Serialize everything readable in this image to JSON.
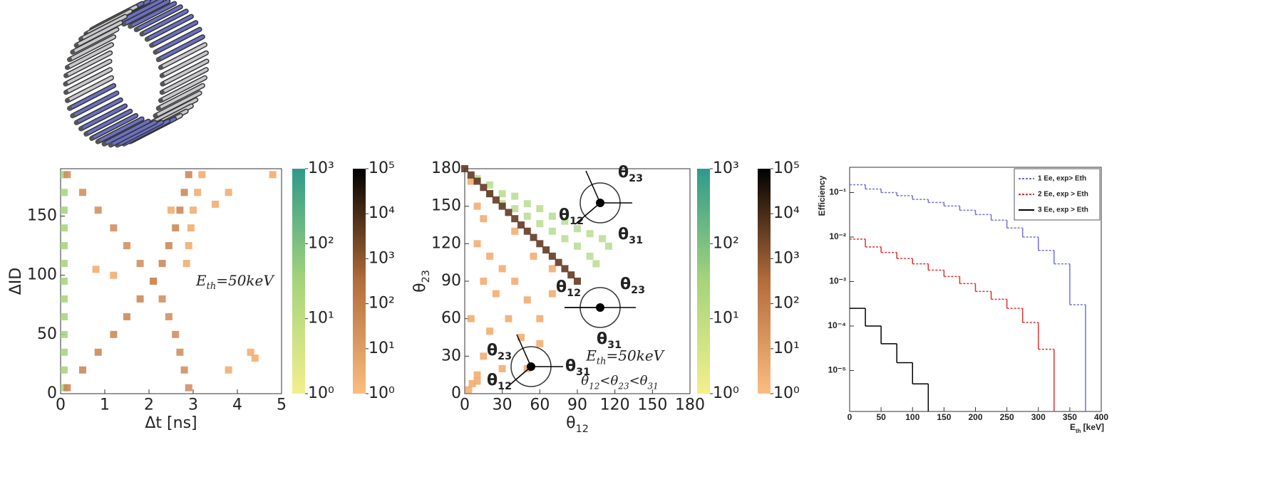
{
  "chart_data": [
    {
      "type": "heatmap",
      "xlabel": "Δt [ns]",
      "ylabel": "ΔID",
      "xlim": [
        0,
        5
      ],
      "xticks": [
        0,
        1,
        2,
        3,
        4,
        5
      ],
      "ylim": [
        0,
        190
      ],
      "yticks": [
        0,
        50,
        100,
        150
      ],
      "annotations": [
        {
          "t": "E",
          "s": "th",
          "r": "=50keV"
        }
      ],
      "series": [
        {
          "color": "#a3d27a",
          "x": [
            0.08,
            0.08,
            0.08,
            0.08,
            0.08,
            0.08,
            0.08,
            0.08,
            0.08,
            0.08,
            0.08,
            0.08,
            0.08
          ],
          "y": [
            5,
            20,
            35,
            50,
            65,
            80,
            95,
            110,
            125,
            140,
            155,
            170,
            185
          ]
        },
        {
          "color": "#c98250",
          "x": [
            0.15,
            0.5,
            0.85,
            1.2,
            1.5,
            1.8,
            2.1,
            2.3,
            2.45,
            2.6,
            2.7,
            2.8,
            2.9
          ],
          "y": [
            5,
            20,
            35,
            50,
            65,
            80,
            95,
            110,
            125,
            140,
            155,
            170,
            185
          ]
        },
        {
          "color": "#d08a58",
          "x": [
            0.15,
            0.5,
            0.85,
            1.2,
            1.5,
            1.8,
            2.1,
            2.3,
            2.45,
            2.6,
            2.7,
            2.8,
            2.9
          ],
          "y": [
            185,
            170,
            155,
            140,
            125,
            110,
            95,
            80,
            65,
            50,
            35,
            20,
            5
          ]
        },
        {
          "color": "#f2a868",
          "x": [
            3.2,
            3.1,
            3.0,
            2.95,
            2.9,
            2.85,
            4.8,
            3.8,
            3.5,
            4.3,
            4.4,
            2.5,
            1.2,
            0.8,
            3.8
          ],
          "y": [
            185,
            170,
            155,
            140,
            125,
            110,
            185,
            170,
            160,
            35,
            30,
            155,
            100,
            105,
            20
          ]
        }
      ],
      "colorbars": [
        {
          "colors": [
            "#f3ef8c",
            "#a5d47b",
            "#2e9a8a"
          ],
          "lim": [
            1,
            1000
          ],
          "ticks": [
            {
              "value": 1,
              "label": "10⁰"
            },
            {
              "value": 10,
              "label": "10¹"
            },
            {
              "value": 100,
              "label": "10²"
            },
            {
              "value": 1000,
              "label": "10³"
            }
          ]
        },
        {
          "colors": [
            "#fbbd80",
            "#b36d3c",
            "#000000"
          ],
          "lim": [
            1,
            100000
          ],
          "ticks": [
            {
              "value": 1,
              "label": "10⁰"
            },
            {
              "value": 10,
              "label": "10¹"
            },
            {
              "value": 100,
              "label": "10²"
            },
            {
              "value": 1000,
              "label": "10³"
            },
            {
              "value": 10000,
              "label": "10⁴"
            },
            {
              "value": 100000,
              "label": "10⁵"
            }
          ]
        }
      ]
    },
    {
      "type": "heatmap",
      "xlabel": {
        "t": "θ",
        "s": "12"
      },
      "ylabel": {
        "t": "θ",
        "s": "23"
      },
      "xlim": [
        0,
        180
      ],
      "xticks": [
        0,
        30,
        60,
        90,
        120,
        150,
        180
      ],
      "ylim": [
        0,
        180
      ],
      "yticks": [
        0,
        30,
        60,
        90,
        120,
        150,
        180
      ],
      "annotations": [
        {
          "t": "E",
          "s": "th",
          "r": "=50keV"
        },
        {
          "t": "θ",
          "s": "12"
        },
        {
          "t": "<θ",
          "s": "23"
        },
        {
          "t": "<θ",
          "s": "31"
        }
      ],
      "insets": [
        [
          {
            "t": "θ",
            "s": "23"
          },
          {
            "t": "θ",
            "s": "12"
          },
          {
            "t": "θ",
            "s": "31"
          }
        ],
        [
          {
            "t": "θ",
            "s": "12"
          },
          {
            "t": "θ",
            "s": "23"
          },
          {
            "t": "θ",
            "s": "31"
          }
        ],
        [
          {
            "t": "θ",
            "s": "23"
          },
          {
            "t": "θ",
            "s": "12"
          },
          {
            "t": "θ",
            "s": "31"
          }
        ]
      ],
      "series": [
        {
          "color": "#b9dc90",
          "x": [
            10,
            20,
            20,
            30,
            30,
            40,
            40,
            50,
            50,
            60,
            60,
            70,
            70,
            80,
            80,
            90,
            90,
            100,
            100,
            110,
            105,
            115
          ],
          "y": [
            172,
            167,
            160,
            160,
            152,
            158,
            148,
            152,
            142,
            148,
            136,
            142,
            130,
            138,
            124,
            132,
            118,
            128,
            110,
            124,
            104,
            118
          ]
        },
        {
          "color": "#f2a868",
          "x": [
            5,
            10,
            15,
            10,
            20,
            30,
            15,
            25,
            40,
            50,
            35,
            20,
            45,
            60,
            70,
            60,
            30,
            10,
            15,
            50,
            5,
            40,
            55,
            70,
            3,
            6,
            10
          ],
          "y": [
            170,
            150,
            140,
            120,
            110,
            100,
            90,
            80,
            90,
            75,
            60,
            50,
            45,
            60,
            80,
            40,
            20,
            10,
            30,
            20,
            60,
            130,
            110,
            100,
            3,
            8,
            15
          ]
        },
        {
          "color": "#5a2e18",
          "x": [
            0,
            5,
            10,
            15,
            20,
            25,
            30,
            35,
            40,
            45,
            50,
            55,
            60,
            65,
            70,
            75,
            80,
            85,
            90
          ],
          "y": [
            180,
            175,
            170,
            165,
            160,
            155,
            150,
            145,
            140,
            135,
            130,
            125,
            120,
            115,
            110,
            105,
            100,
            95,
            90
          ]
        }
      ],
      "colorbars": [
        {
          "colors": [
            "#f3ef8c",
            "#a5d47b",
            "#2e9a8a"
          ],
          "lim": [
            1,
            1000
          ],
          "ticks": [
            {
              "value": 1,
              "label": "10⁰"
            },
            {
              "value": 10,
              "label": "10¹"
            },
            {
              "value": 100,
              "label": "10²"
            },
            {
              "value": 1000,
              "label": "10³"
            }
          ]
        },
        {
          "colors": [
            "#fbbd80",
            "#b36d3c",
            "#000000"
          ],
          "lim": [
            1,
            100000
          ],
          "ticks": [
            {
              "value": 1,
              "label": "10⁰"
            },
            {
              "value": 10,
              "label": "10¹"
            },
            {
              "value": 100,
              "label": "10²"
            },
            {
              "value": 1000,
              "label": "10³"
            },
            {
              "value": 10000,
              "label": "10⁴"
            },
            {
              "value": 100000,
              "label": "10⁵"
            }
          ]
        }
      ]
    },
    {
      "type": "line",
      "xlabel": {
        "t": "E",
        "s": "th",
        "r": " [keV]"
      },
      "ylabel": "Efficiency",
      "xlim": [
        0,
        400
      ],
      "xticks": [
        0,
        50,
        100,
        150,
        200,
        250,
        300,
        350,
        400
      ],
      "ylim": [
        1.2e-06,
        0.37
      ],
      "ylog": true,
      "yticks": [
        {
          "value": 1e-05,
          "label": "10⁻⁵"
        },
        {
          "value": 0.0001,
          "label": "10⁻⁴"
        },
        {
          "value": 0.001,
          "label": "10⁻³"
        },
        {
          "value": 0.01,
          "label": "10⁻²"
        },
        {
          "value": 0.1,
          "label": "10⁻¹"
        }
      ],
      "legend": "upper right",
      "x": [
        0,
        25,
        50,
        75,
        100,
        125,
        150,
        175,
        200,
        225,
        250,
        275,
        300,
        325,
        350,
        375
      ],
      "series": [
        {
          "name": "1 Ee, exp> Eth",
          "color": "#7070e0",
          "values": [
            0.15,
            0.12,
            0.1,
            0.085,
            0.07,
            0.06,
            0.05,
            0.04,
            0.032,
            0.024,
            0.016,
            0.01,
            0.005,
            0.0025,
            0.0003,
            null
          ]
        },
        {
          "name": "2 Ee, exp > Eth",
          "color": "#e03030",
          "values": [
            0.009,
            0.006,
            0.0045,
            0.0033,
            0.0025,
            0.0018,
            0.0013,
            0.0009,
            0.0006,
            0.0004,
            0.00025,
            0.00012,
            3e-05,
            null,
            null,
            null
          ]
        },
        {
          "name": "3 Ee, exp > Eth",
          "color": "#000000",
          "values": [
            0.00025,
            0.0001,
            4e-05,
            1.5e-05,
            5e-06,
            null,
            null,
            null,
            null,
            null,
            null,
            null,
            null,
            null,
            null,
            null
          ]
        }
      ]
    }
  ]
}
